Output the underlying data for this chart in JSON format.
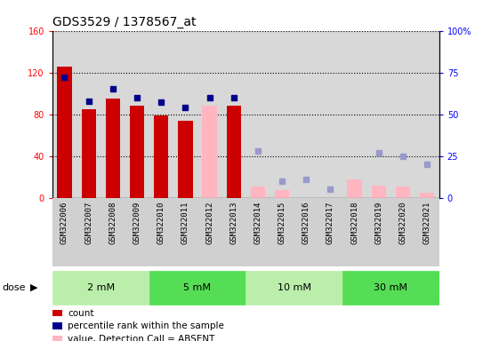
{
  "title": "GDS3529 / 1378567_at",
  "samples": [
    "GSM322006",
    "GSM322007",
    "GSM322008",
    "GSM322009",
    "GSM322010",
    "GSM322011",
    "GSM322012",
    "GSM322013",
    "GSM322014",
    "GSM322015",
    "GSM322016",
    "GSM322017",
    "GSM322018",
    "GSM322019",
    "GSM322020",
    "GSM322021"
  ],
  "counts": [
    126,
    85,
    95,
    88,
    79,
    74,
    null,
    88,
    null,
    null,
    null,
    null,
    null,
    null,
    null,
    null
  ],
  "percentile_ranks": [
    72,
    58,
    65,
    60,
    57,
    54,
    60,
    60,
    null,
    null,
    null,
    null,
    null,
    null,
    null,
    null
  ],
  "absent_values": [
    null,
    null,
    null,
    null,
    null,
    null,
    88,
    null,
    11,
    7,
    null,
    null,
    18,
    12,
    11,
    5
  ],
  "absent_ranks": [
    null,
    null,
    null,
    null,
    null,
    null,
    null,
    null,
    28,
    10,
    11,
    5,
    null,
    27,
    25,
    20
  ],
  "bar_color_present": "#cc0000",
  "bar_color_absent": "#ffb6c1",
  "dot_color_present": "#00008b",
  "dot_color_absent": "#9999cc",
  "ylim_left": [
    0,
    160
  ],
  "ylim_right": [
    0,
    100
  ],
  "yticks_left": [
    0,
    40,
    80,
    120,
    160
  ],
  "ytick_labels_left": [
    "0",
    "40",
    "80",
    "120",
    "160"
  ],
  "yticks_right": [
    0,
    25,
    50,
    75,
    100
  ],
  "ytick_labels_right": [
    "0",
    "25",
    "50",
    "75",
    "100%"
  ],
  "dose_groups": [
    {
      "label": "2 mM",
      "start": 0,
      "end": 3,
      "color": "#bbeeaa"
    },
    {
      "label": "5 mM",
      "start": 4,
      "end": 7,
      "color": "#55dd55"
    },
    {
      "label": "10 mM",
      "start": 8,
      "end": 11,
      "color": "#bbeeaa"
    },
    {
      "label": "30 mM",
      "start": 12,
      "end": 15,
      "color": "#55dd55"
    }
  ]
}
